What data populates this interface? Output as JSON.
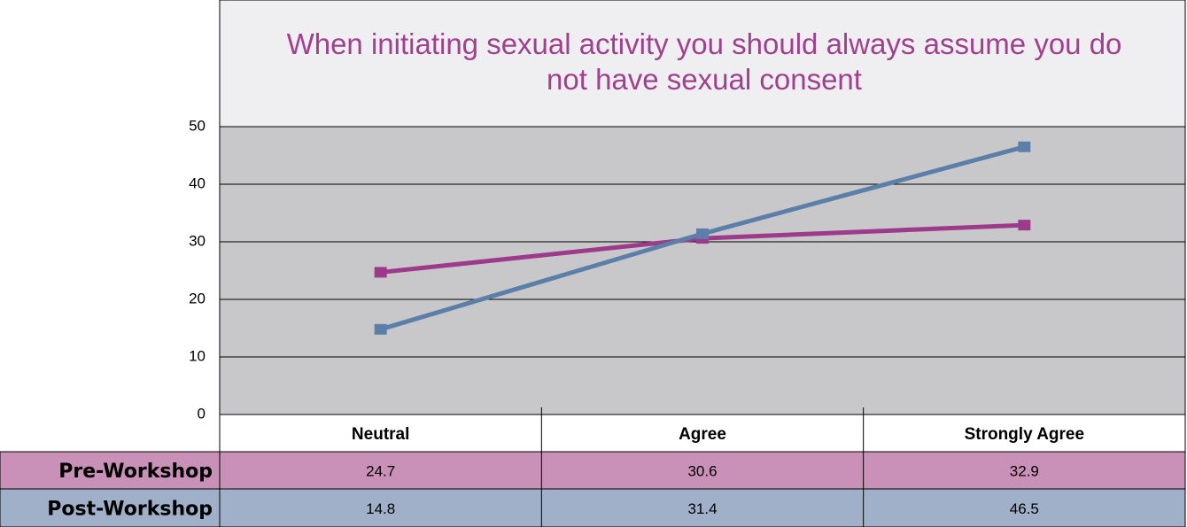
{
  "chart_data": {
    "type": "line",
    "title": "When initiating sexual activity you should always assume you do not have sexual consent",
    "categories": [
      "Neutral",
      "Agree",
      "Strongly Agree"
    ],
    "series": [
      {
        "name": "Pre-Workshop",
        "color": "#9e3a8c",
        "row_color": "#c990b8",
        "values": [
          24.7,
          30.6,
          32.9
        ]
      },
      {
        "name": "Post-Workshop",
        "color": "#5b7fa8",
        "row_color": "#a0b0c8",
        "values": [
          14.8,
          31.4,
          46.5
        ]
      }
    ],
    "ylim": [
      0,
      50
    ],
    "yticks": [
      0,
      10,
      20,
      30,
      40,
      50
    ],
    "grid": true
  }
}
